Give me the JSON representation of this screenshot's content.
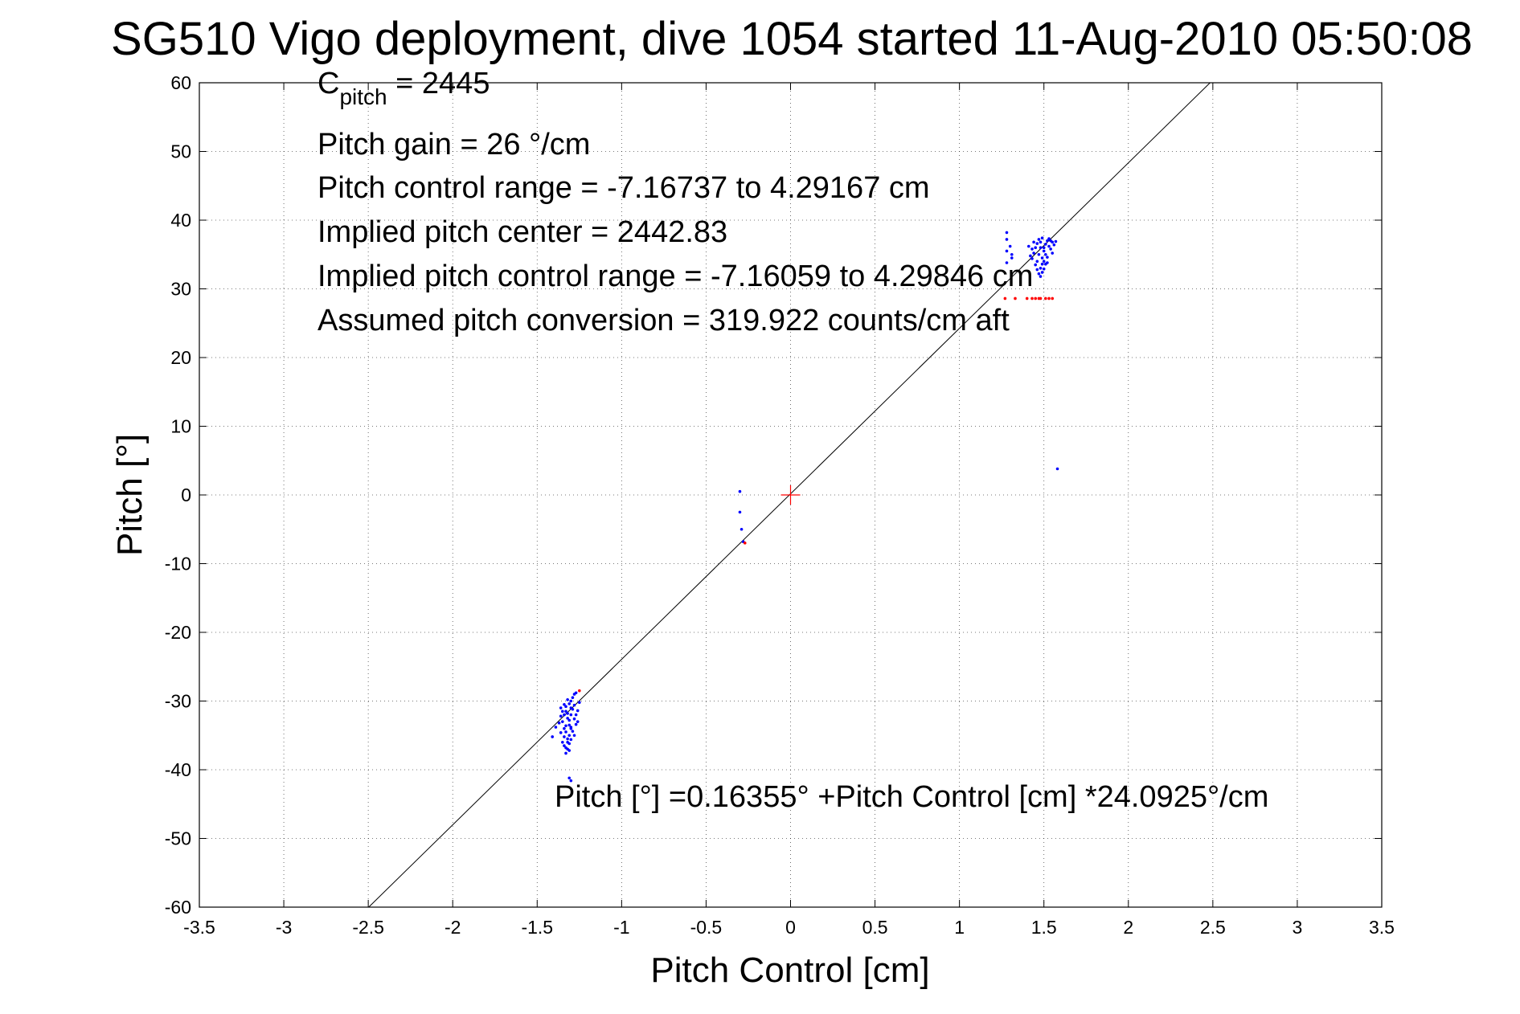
{
  "chart_data": {
    "type": "scatter",
    "title": "SG510 Vigo deployment, dive 1054 started 11-Aug-2010 05:50:08",
    "xlabel": "Pitch Control [cm]",
    "ylabel": "Pitch [°]",
    "xlim": [
      -3.5,
      3.5
    ],
    "ylim": [
      -60,
      60
    ],
    "grid": true,
    "xticks": [
      "-3.5",
      "-3",
      "-2.5",
      "-2",
      "-1.5",
      "-1",
      "-0.5",
      "0",
      "0.5",
      "1",
      "1.5",
      "2",
      "2.5",
      "3",
      "3.5"
    ],
    "yticks": [
      "60",
      "50",
      "40",
      "30",
      "20",
      "10",
      "0",
      "-10",
      "-20",
      "-30",
      "-40",
      "-50",
      "-60"
    ],
    "annotations": {
      "cpitch_base": "C",
      "cpitch_sub": "pitch",
      "cpitch_value": " = 2445",
      "gain": "Pitch gain = 26 °/cm",
      "range": "Pitch control range = -7.16737 to 4.29167 cm",
      "implied_center": "Implied pitch center = 2442.83",
      "implied_range": "Implied pitch control range = -7.16059 to 4.29846 cm",
      "conversion": "Assumed pitch conversion = 319.922 counts/cm aft",
      "fit": "Pitch [°] =0.16355° +Pitch Control [cm] *24.0925°/cm"
    },
    "fit_line": {
      "intercept": 0.16355,
      "slope": 24.0925
    },
    "center_marker": {
      "x": 0,
      "y": 0,
      "color": "#ff0000"
    },
    "colors": {
      "good": "#0000ff",
      "flagged": "#ff0000",
      "line": "#000000"
    },
    "series": [
      {
        "color": "#0000ff",
        "points": [
          [
            -1.34,
            -30.5
          ],
          [
            -1.33,
            -31.5
          ],
          [
            -1.32,
            -32.5
          ],
          [
            -1.31,
            -33.5
          ],
          [
            -1.3,
            -31.0
          ],
          [
            -1.33,
            -34.5
          ],
          [
            -1.32,
            -35.5
          ],
          [
            -1.34,
            -36.5
          ],
          [
            -1.31,
            -37.2
          ],
          [
            -1.33,
            -37.6
          ],
          [
            -1.35,
            -33.0
          ],
          [
            -1.36,
            -32.2
          ],
          [
            -1.34,
            -34.0
          ],
          [
            -1.3,
            -30.0
          ],
          [
            -1.29,
            -29.5
          ],
          [
            -1.28,
            -29.0
          ],
          [
            -1.27,
            -28.8
          ],
          [
            -1.3,
            -32.0
          ],
          [
            -1.31,
            -35.0
          ],
          [
            -1.32,
            -36.0
          ],
          [
            -1.35,
            -31.5
          ],
          [
            -1.33,
            -30.8
          ],
          [
            -1.32,
            -29.8
          ],
          [
            -1.31,
            -30.4
          ],
          [
            -1.29,
            -31.2
          ],
          [
            -1.28,
            -32.6
          ],
          [
            -1.27,
            -33.4
          ],
          [
            -1.29,
            -34.4
          ],
          [
            -1.3,
            -35.6
          ],
          [
            -1.34,
            -35.2
          ],
          [
            -1.36,
            -34.6
          ],
          [
            -1.35,
            -36.0
          ],
          [
            -1.33,
            -33.6
          ],
          [
            -1.32,
            -31.8
          ],
          [
            -1.31,
            -32.8
          ],
          [
            -1.3,
            -33.8
          ],
          [
            -1.28,
            -30.6
          ],
          [
            -1.26,
            -31.4
          ],
          [
            -1.25,
            -30.2
          ],
          [
            -1.36,
            -31.0
          ],
          [
            -1.37,
            -33.2
          ],
          [
            -1.33,
            -36.8
          ],
          [
            -1.32,
            -37.0
          ],
          [
            -1.31,
            -36.2
          ],
          [
            -1.34,
            -32.0
          ],
          [
            -1.3,
            -34.0
          ],
          [
            -1.28,
            -35.0
          ],
          [
            -1.27,
            -32.0
          ],
          [
            -1.26,
            -33.0
          ],
          [
            -1.31,
            -41.2
          ],
          [
            -1.41,
            -35.2
          ],
          [
            -1.39,
            -33.8
          ],
          [
            -1.3,
            -41.6
          ],
          [
            1.46,
            34.0
          ],
          [
            1.47,
            35.0
          ],
          [
            1.48,
            36.0
          ],
          [
            1.49,
            34.5
          ],
          [
            1.5,
            35.5
          ],
          [
            1.51,
            36.5
          ],
          [
            1.52,
            37.0
          ],
          [
            1.53,
            36.2
          ],
          [
            1.54,
            35.8
          ],
          [
            1.55,
            36.8
          ],
          [
            1.45,
            33.5
          ],
          [
            1.44,
            35.2
          ],
          [
            1.43,
            34.4
          ],
          [
            1.46,
            32.8
          ],
          [
            1.47,
            32.2
          ],
          [
            1.48,
            33.0
          ],
          [
            1.49,
            33.6
          ],
          [
            1.5,
            34.0
          ],
          [
            1.51,
            35.0
          ],
          [
            1.52,
            34.6
          ],
          [
            1.53,
            37.3
          ],
          [
            1.54,
            37.0
          ],
          [
            1.56,
            36.4
          ],
          [
            1.57,
            36.9
          ],
          [
            1.46,
            36.6
          ],
          [
            1.47,
            37.2
          ],
          [
            1.48,
            36.8
          ],
          [
            1.49,
            37.4
          ],
          [
            1.5,
            36.0
          ],
          [
            1.51,
            33.6
          ],
          [
            1.45,
            36.0
          ],
          [
            1.44,
            36.8
          ],
          [
            1.43,
            35.8
          ],
          [
            1.42,
            34.8
          ],
          [
            1.41,
            36.2
          ],
          [
            1.48,
            31.8
          ],
          [
            1.49,
            32.4
          ],
          [
            1.5,
            32.9
          ],
          [
            1.52,
            33.8
          ],
          [
            1.55,
            35.2
          ],
          [
            1.28,
            38.2
          ],
          [
            1.28,
            37.2
          ],
          [
            1.28,
            35.5
          ],
          [
            1.28,
            33.8
          ],
          [
            1.31,
            34.5
          ],
          [
            1.31,
            35.0
          ],
          [
            1.3,
            36.2
          ],
          [
            1.58,
            3.8
          ],
          [
            -0.3,
            0.5
          ],
          [
            -0.3,
            -2.5
          ],
          [
            -0.29,
            -5.0
          ],
          [
            -0.28,
            -6.8
          ]
        ]
      },
      {
        "color": "#ff0000",
        "points": [
          [
            1.27,
            28.6
          ],
          [
            1.33,
            28.6
          ],
          [
            1.4,
            28.6
          ],
          [
            1.43,
            28.6
          ],
          [
            1.45,
            28.6
          ],
          [
            1.47,
            28.6
          ],
          [
            1.48,
            28.6
          ],
          [
            1.51,
            28.6
          ],
          [
            1.53,
            28.6
          ],
          [
            1.55,
            28.6
          ],
          [
            -1.25,
            -28.5
          ],
          [
            -0.27,
            -7.0
          ]
        ]
      }
    ]
  }
}
